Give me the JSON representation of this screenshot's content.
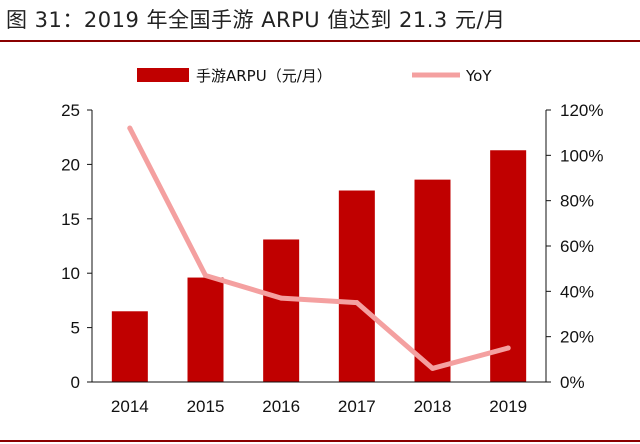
{
  "figure": {
    "title": "图 31：2019 年全国手游 ARPU 值达到 21.3 元/月"
  },
  "colors": {
    "bar": "#c00000",
    "line": "#f4a0a0",
    "rule": "#8a0000",
    "axis": "#111111"
  },
  "chart_data": {
    "type": "bar",
    "categories": [
      "2014",
      "2015",
      "2016",
      "2017",
      "2018",
      "2019"
    ],
    "series": [
      {
        "name": "手游ARPU（元/月）",
        "type": "bar",
        "axis": "left",
        "values": [
          6.5,
          9.6,
          13.1,
          17.6,
          18.6,
          21.3
        ]
      },
      {
        "name": "YoY",
        "type": "line",
        "axis": "right",
        "values": [
          112,
          47,
          37,
          35,
          6,
          15
        ]
      }
    ],
    "y_left": {
      "ylim": [
        0,
        25
      ],
      "ticks": [
        "0",
        "5",
        "10",
        "15",
        "20",
        "25"
      ]
    },
    "y_right": {
      "ylim": [
        0,
        120
      ],
      "ticks": [
        "0%",
        "20%",
        "40%",
        "60%",
        "80%",
        "100%",
        "120%"
      ]
    },
    "legend_position": "top",
    "grid": false
  }
}
